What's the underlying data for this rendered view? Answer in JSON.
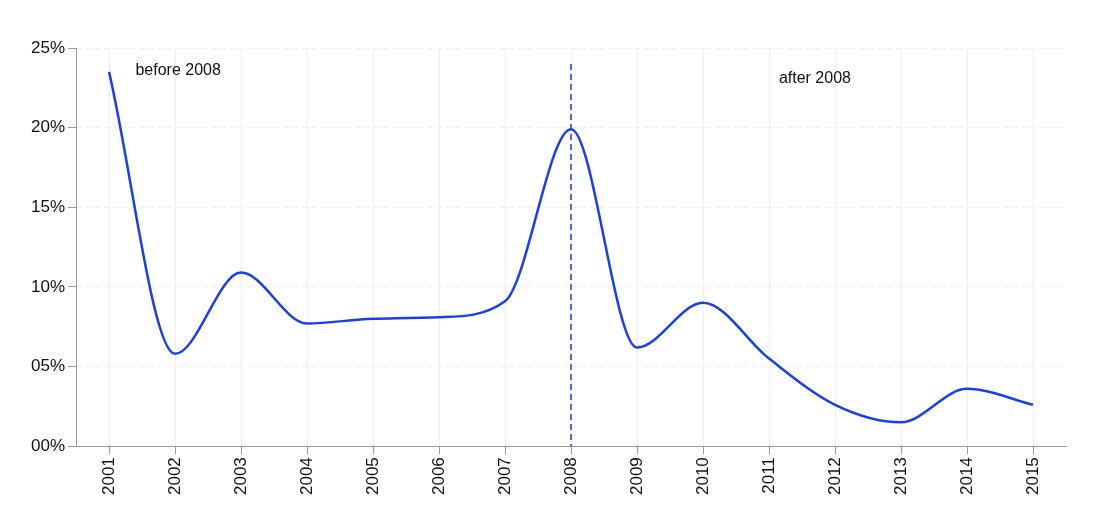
{
  "chart_data": {
    "type": "line",
    "categories": [
      "2001",
      "2002",
      "2003",
      "2004",
      "2005",
      "2006",
      "2007",
      "2008",
      "2009",
      "2010",
      "2011",
      "2012",
      "2013",
      "2014",
      "2015"
    ],
    "series": [
      {
        "color": "#1a3cf5",
        "values": [
          23.5,
          5.8,
          10.9,
          7.7,
          8.0,
          8.1,
          9.1,
          19.9,
          6.2,
          9.0,
          5.5,
          2.6,
          1.5,
          3.6,
          2.6
        ]
      }
    ],
    "ylim": [
      0,
      25
    ],
    "yticks": [
      {
        "value": 0,
        "label": "00%"
      },
      {
        "value": 5,
        "label": "05%"
      },
      {
        "value": 10,
        "label": "10%"
      },
      {
        "value": 15,
        "label": "15%"
      },
      {
        "value": 20,
        "label": "20%"
      },
      {
        "value": 25,
        "label": "25%"
      }
    ],
    "ref_lines": [
      {
        "axis": "x",
        "value": "2008",
        "color": "#1f3fbf",
        "line_style": "dashed"
      }
    ],
    "annotations": [
      "before 2008",
      "after 2008"
    ],
    "grid": true,
    "legend": false,
    "marker": "none",
    "line_style": "solid"
  }
}
